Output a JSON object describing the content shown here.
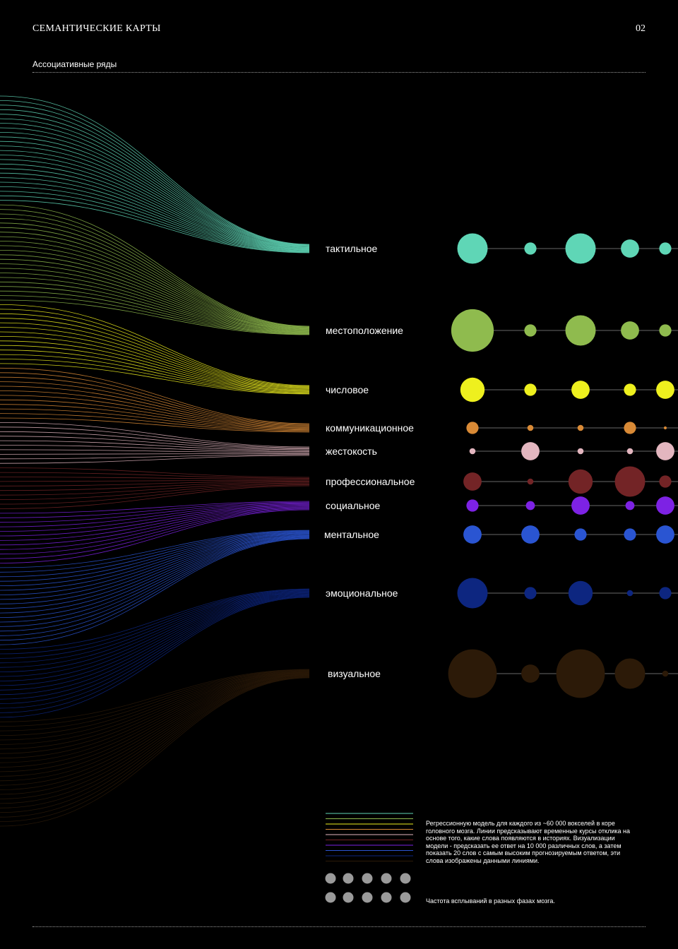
{
  "header": {
    "title": "СЕМАНТИЧЕСКИЕ КАРТЫ",
    "page_number": "02",
    "subtitle": "Ассоциативные ряды"
  },
  "chart_data": {
    "type": "dot-matrix with flow lines",
    "categories": [
      {
        "label": "тактильное",
        "color": "#5fd6b6",
        "line_count": 24,
        "dots": [
          5,
          2,
          5,
          3,
          2
        ]
      },
      {
        "label": "местоположение",
        "color": "#8fbb4e",
        "line_count": 22,
        "dots": [
          7,
          2,
          5,
          3,
          2
        ]
      },
      {
        "label": "числовое",
        "color": "#eef01e",
        "line_count": 14,
        "dots": [
          4,
          2,
          3,
          2,
          3
        ]
      },
      {
        "label": "коммуникационное",
        "color": "#d98a36",
        "line_count": 12,
        "dots": [
          2,
          1,
          1,
          2,
          0.5
        ]
      },
      {
        "label": "жестокость",
        "color": "#e3b6bf",
        "line_count": 10,
        "dots": [
          1,
          3,
          1,
          1,
          3
        ]
      },
      {
        "label": "профессиональное",
        "color": "#732426",
        "line_count": 10,
        "dots": [
          3,
          1,
          4,
          5,
          2
        ]
      },
      {
        "label": "социальное",
        "color": "#7d22e4",
        "line_count": 12,
        "dots": [
          2,
          1.5,
          3,
          1.5,
          3
        ]
      },
      {
        "label": "ментальное",
        "color": "#2a55d2",
        "line_count": 18,
        "dots": [
          3,
          3,
          2,
          2,
          3
        ]
      },
      {
        "label": "эмоциональное",
        "color": "#0d2680",
        "line_count": 16,
        "dots": [
          5,
          2,
          4,
          1,
          2
        ]
      },
      {
        "label": "визуальное",
        "color": "#2c1a08",
        "line_count": 24,
        "dots": [
          8,
          3,
          8,
          5,
          1
        ]
      }
    ]
  },
  "legend": {
    "line_colors": [
      "#5fd6b6",
      "#8fbb4e",
      "#eef01e",
      "#d98a36",
      "#e3b6bf",
      "#732426",
      "#7d22e4",
      "#2a55d2",
      "#0d2680",
      "#2c1a08"
    ],
    "lines_description": "Регрессионную модель для каждого из ~60 000 вокселей в коре головного мозга. Линии предсказывают временные курсы отклика на основе того, какие слова появляются в историях. Визуализации модели - предсказать ее ответ на 10 000 различных слов, а затем показать 20 слов с самым высоким прогнозируемым ответом, эти слова изображены данными линиями.",
    "dot_color": "#9a9a9a",
    "dots_description": "Частота всплываний в разных фазах мозга."
  }
}
